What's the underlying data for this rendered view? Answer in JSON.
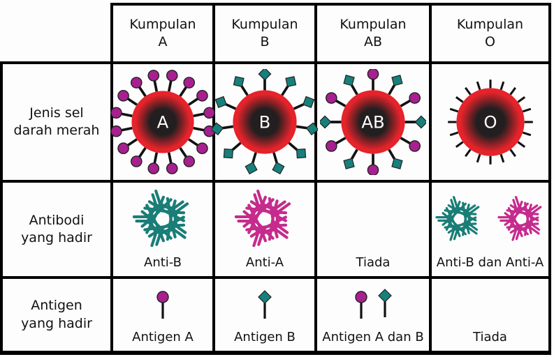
{
  "table": {
    "row_labels": {
      "red_cell_type": "Jenis sel\ndarah merah",
      "antibodies_present": "Antibodi\nyang hadir",
      "antigens_present": "Antigen\nyang hadir"
    },
    "columns": [
      {
        "header": "Kumpulan\nA",
        "cell_letter": "A",
        "antibody_label": "Anti-B",
        "antigen_label": "Antigen A",
        "antigens_on_cell": [
          "A"
        ],
        "antibody_types": [
          "Anti-B"
        ]
      },
      {
        "header": "Kumpulan\nB",
        "cell_letter": "B",
        "antibody_label": "Anti-A",
        "antigen_label": "Antigen B",
        "antigens_on_cell": [
          "B"
        ],
        "antibody_types": [
          "Anti-A"
        ]
      },
      {
        "header": "Kumpulan\nAB",
        "cell_letter": "AB",
        "antibody_label": "Tiada",
        "antigen_label": "Antigen A dan B",
        "antigens_on_cell": [
          "A",
          "B"
        ],
        "antibody_types": []
      },
      {
        "header": "Kumpulan\nO",
        "cell_letter": "O",
        "antibody_label": "Anti-B dan Anti-A",
        "antigen_label": "Tiada",
        "antigens_on_cell": [],
        "antibody_types": [
          "Anti-B",
          "Anti-A"
        ]
      }
    ],
    "colors": {
      "red_cell": "#e6232b",
      "cell_core": "#231f20",
      "antigen_a": "#a8208f",
      "antigen_b": "#17807b",
      "antibody_anti_a": "#c52b8d",
      "antibody_anti_b": "#1a7d77",
      "spike": "#111111",
      "grid": "#000000"
    }
  }
}
